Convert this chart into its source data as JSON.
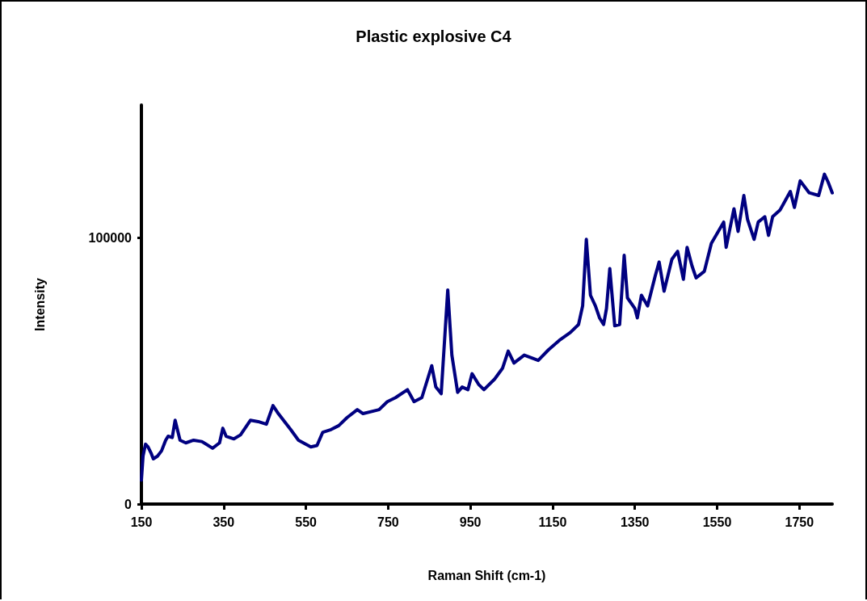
{
  "chart_data": {
    "type": "line",
    "title": "Plastic explosive C4",
    "xlabel": "Raman Shift (cm-1)",
    "ylabel": "Intensity",
    "x": [
      150,
      154,
      160,
      166,
      174,
      179,
      189,
      199,
      209,
      215,
      225,
      232,
      244,
      258,
      277,
      297,
      323,
      340,
      348,
      356,
      375,
      391,
      415,
      434,
      454,
      470,
      483,
      513,
      532,
      562,
      577,
      591,
      611,
      630,
      650,
      675,
      689,
      728,
      748,
      768,
      797,
      813,
      832,
      856,
      866,
      879,
      895,
      905,
      919,
      930,
      944,
      954,
      970,
      983,
      1009,
      1028,
      1042,
      1056,
      1081,
      1115,
      1140,
      1166,
      1193,
      1213,
      1223,
      1232,
      1242,
      1254,
      1264,
      1274,
      1281,
      1289,
      1301,
      1313,
      1324,
      1332,
      1350,
      1356,
      1366,
      1381,
      1399,
      1409,
      1421,
      1440,
      1454,
      1468,
      1477,
      1489,
      1499,
      1519,
      1536,
      1566,
      1572,
      1591,
      1601,
      1615,
      1624,
      1640,
      1650,
      1666,
      1675,
      1685,
      1703,
      1728,
      1738,
      1752,
      1774,
      1797,
      1811,
      1820,
      1830
    ],
    "series": [
      {
        "color": "#000080",
        "values": [
          9000,
          18000,
          22500,
          21500,
          19000,
          17000,
          18000,
          20000,
          24000,
          25500,
          25000,
          31500,
          24000,
          23000,
          24000,
          23500,
          21000,
          23000,
          28500,
          25500,
          24500,
          26000,
          31500,
          31000,
          30000,
          37000,
          34000,
          28000,
          24000,
          21500,
          22000,
          27000,
          28000,
          29500,
          32500,
          35500,
          34000,
          35500,
          38500,
          40000,
          43000,
          38500,
          40000,
          52000,
          44000,
          41500,
          80500,
          56000,
          42000,
          44000,
          43000,
          49000,
          45000,
          43000,
          47000,
          51000,
          57500,
          53000,
          56000,
          54000,
          58000,
          61500,
          64500,
          67500,
          74500,
          99500,
          78500,
          74500,
          70000,
          67500,
          73500,
          88500,
          67000,
          67500,
          93500,
          77500,
          73500,
          70000,
          78500,
          74500,
          85500,
          91000,
          80000,
          92000,
          95000,
          84500,
          96500,
          89500,
          85000,
          87500,
          98000,
          106000,
          96500,
          111000,
          102500,
          116000,
          107000,
          99500,
          106000,
          108000,
          101000,
          108000,
          110500,
          117500,
          111500,
          121500,
          117000,
          116000,
          124000,
          121000,
          117000
        ]
      }
    ],
    "xlim": [
      150,
      1830
    ],
    "xticks": [
      150,
      350,
      550,
      750,
      950,
      1150,
      1350,
      1550,
      1750
    ],
    "ylim": [
      0,
      150000
    ],
    "yticks": [
      0,
      100000
    ],
    "grid": false,
    "marker": "none",
    "line_style": "solid"
  }
}
